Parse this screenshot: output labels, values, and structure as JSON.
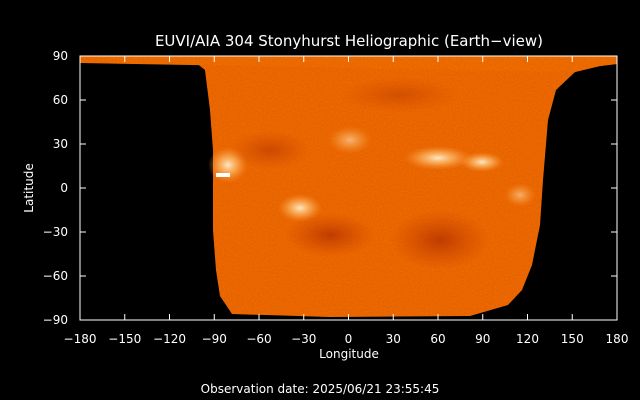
{
  "title": "EUVI/AIA 304 Stonyhurst Heliographic (Earth−view)",
  "xlabel": "Longitude",
  "ylabel": "Latitude",
  "observation": "Observation date: 2025/06/21 23:55:45",
  "axes": {
    "x": {
      "min": -180,
      "max": 180,
      "ticks": [
        -180,
        -150,
        -120,
        -90,
        -60,
        -30,
        0,
        30,
        60,
        90,
        120,
        150,
        180
      ],
      "tick_labels": [
        "−180",
        "−150",
        "−120",
        "−90",
        "−60",
        "−30",
        "0",
        "30",
        "60",
        "90",
        "120",
        "150",
        "180"
      ]
    },
    "y": {
      "min": -90,
      "max": 90,
      "ticks": [
        90,
        60,
        30,
        0,
        -30,
        -60,
        -90
      ],
      "tick_labels": [
        "90",
        "60",
        "30",
        "0",
        "−30",
        "−60",
        "−90"
      ]
    }
  },
  "colors": {
    "background": "#000000",
    "axis": "#ffffff",
    "map_base": "#f06a0c",
    "map_dark": "#c63b02",
    "map_bright": "#ffd9a0",
    "no_data": "#000000"
  }
}
